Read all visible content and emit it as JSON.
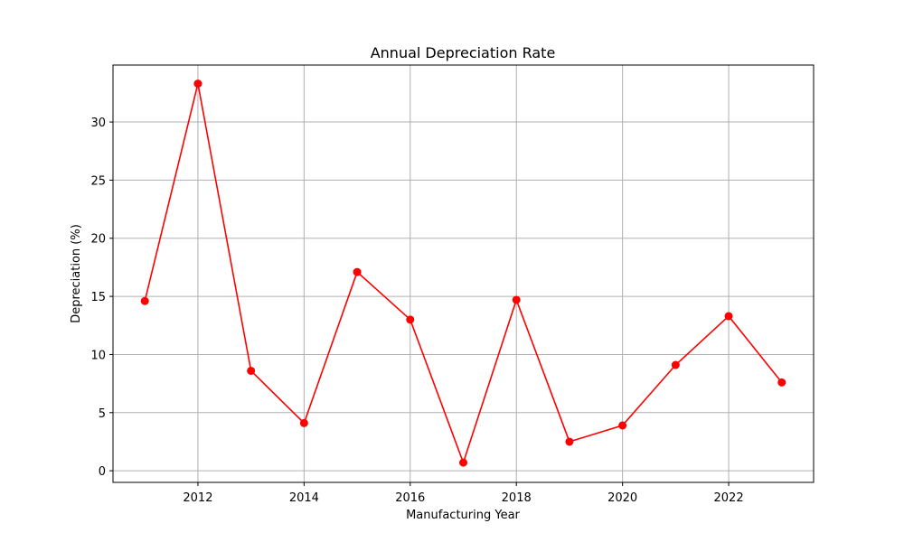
{
  "chart_data": {
    "type": "line",
    "title": "Annual Depreciation Rate",
    "xlabel": "Manufacturing Year",
    "ylabel": "Depreciation (%)",
    "x": [
      2011,
      2012,
      2013,
      2014,
      2015,
      2016,
      2017,
      2018,
      2019,
      2020,
      2021,
      2022,
      2023
    ],
    "series": [
      {
        "values": [
          14.6,
          33.3,
          8.6,
          4.1,
          17.1,
          13.0,
          0.7,
          14.7,
          2.5,
          3.9,
          9.1,
          13.3,
          7.6
        ],
        "color": "#ff0000",
        "marker": "circle"
      }
    ],
    "xlim": [
      2010.4,
      2023.6
    ],
    "ylim": [
      -1.0,
      34.9
    ],
    "xticks": [
      2012,
      2014,
      2016,
      2018,
      2020,
      2022
    ],
    "yticks": [
      0,
      5,
      10,
      15,
      20,
      25,
      30
    ],
    "grid": true,
    "legend": "none"
  }
}
